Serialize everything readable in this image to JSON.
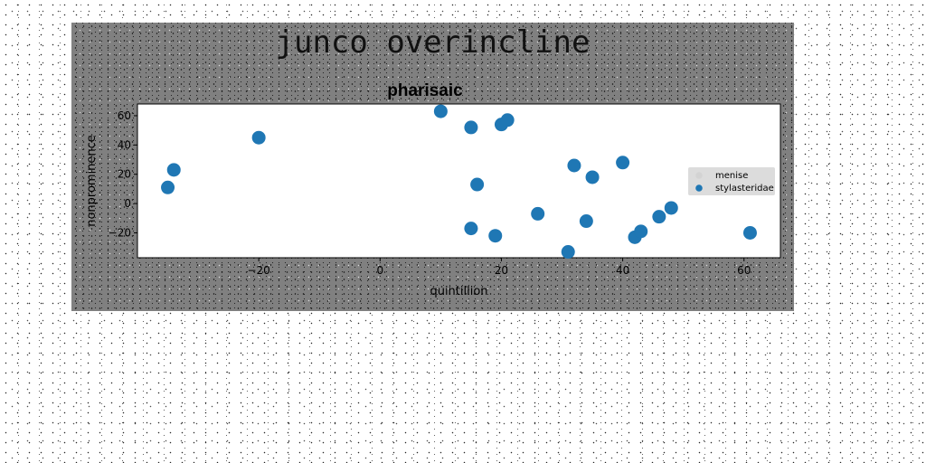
{
  "figure": {
    "suptitle": "junco overincline",
    "background_color": "#808080"
  },
  "chart_data": {
    "type": "scatter",
    "title": "pharisaic",
    "xlabel": "quintillion",
    "ylabel": "nonprominence",
    "xlim": [
      -40,
      66
    ],
    "ylim": [
      -37,
      68
    ],
    "xticks": [
      -20,
      0,
      20,
      40,
      60
    ],
    "yticks": [
      -20,
      0,
      20,
      40,
      60
    ],
    "grid": false,
    "legend": {
      "placement": "center-right",
      "entries": [
        {
          "label": "menise",
          "color": "#d3d3d3"
        },
        {
          "label": "stylasteridae",
          "color": "#1f77b4"
        }
      ]
    },
    "series": [
      {
        "name": "menise",
        "color": "#d3d3d3",
        "points": []
      },
      {
        "name": "stylasteridae",
        "color": "#1f77b4",
        "points": [
          {
            "x": -35,
            "y": 11
          },
          {
            "x": -34,
            "y": 23
          },
          {
            "x": -20,
            "y": 45
          },
          {
            "x": 10,
            "y": 63
          },
          {
            "x": 15,
            "y": 52
          },
          {
            "x": 20,
            "y": 54
          },
          {
            "x": 21,
            "y": 57
          },
          {
            "x": 16,
            "y": 13
          },
          {
            "x": 15,
            "y": -17
          },
          {
            "x": 19,
            "y": -22
          },
          {
            "x": 26,
            "y": -7
          },
          {
            "x": 31,
            "y": -33
          },
          {
            "x": 32,
            "y": 26
          },
          {
            "x": 34,
            "y": -12
          },
          {
            "x": 35,
            "y": 18
          },
          {
            "x": 40,
            "y": 28
          },
          {
            "x": 42,
            "y": -23
          },
          {
            "x": 43,
            "y": -19
          },
          {
            "x": 46,
            "y": -9
          },
          {
            "x": 48,
            "y": -3
          },
          {
            "x": 61,
            "y": -20
          }
        ]
      }
    ]
  }
}
